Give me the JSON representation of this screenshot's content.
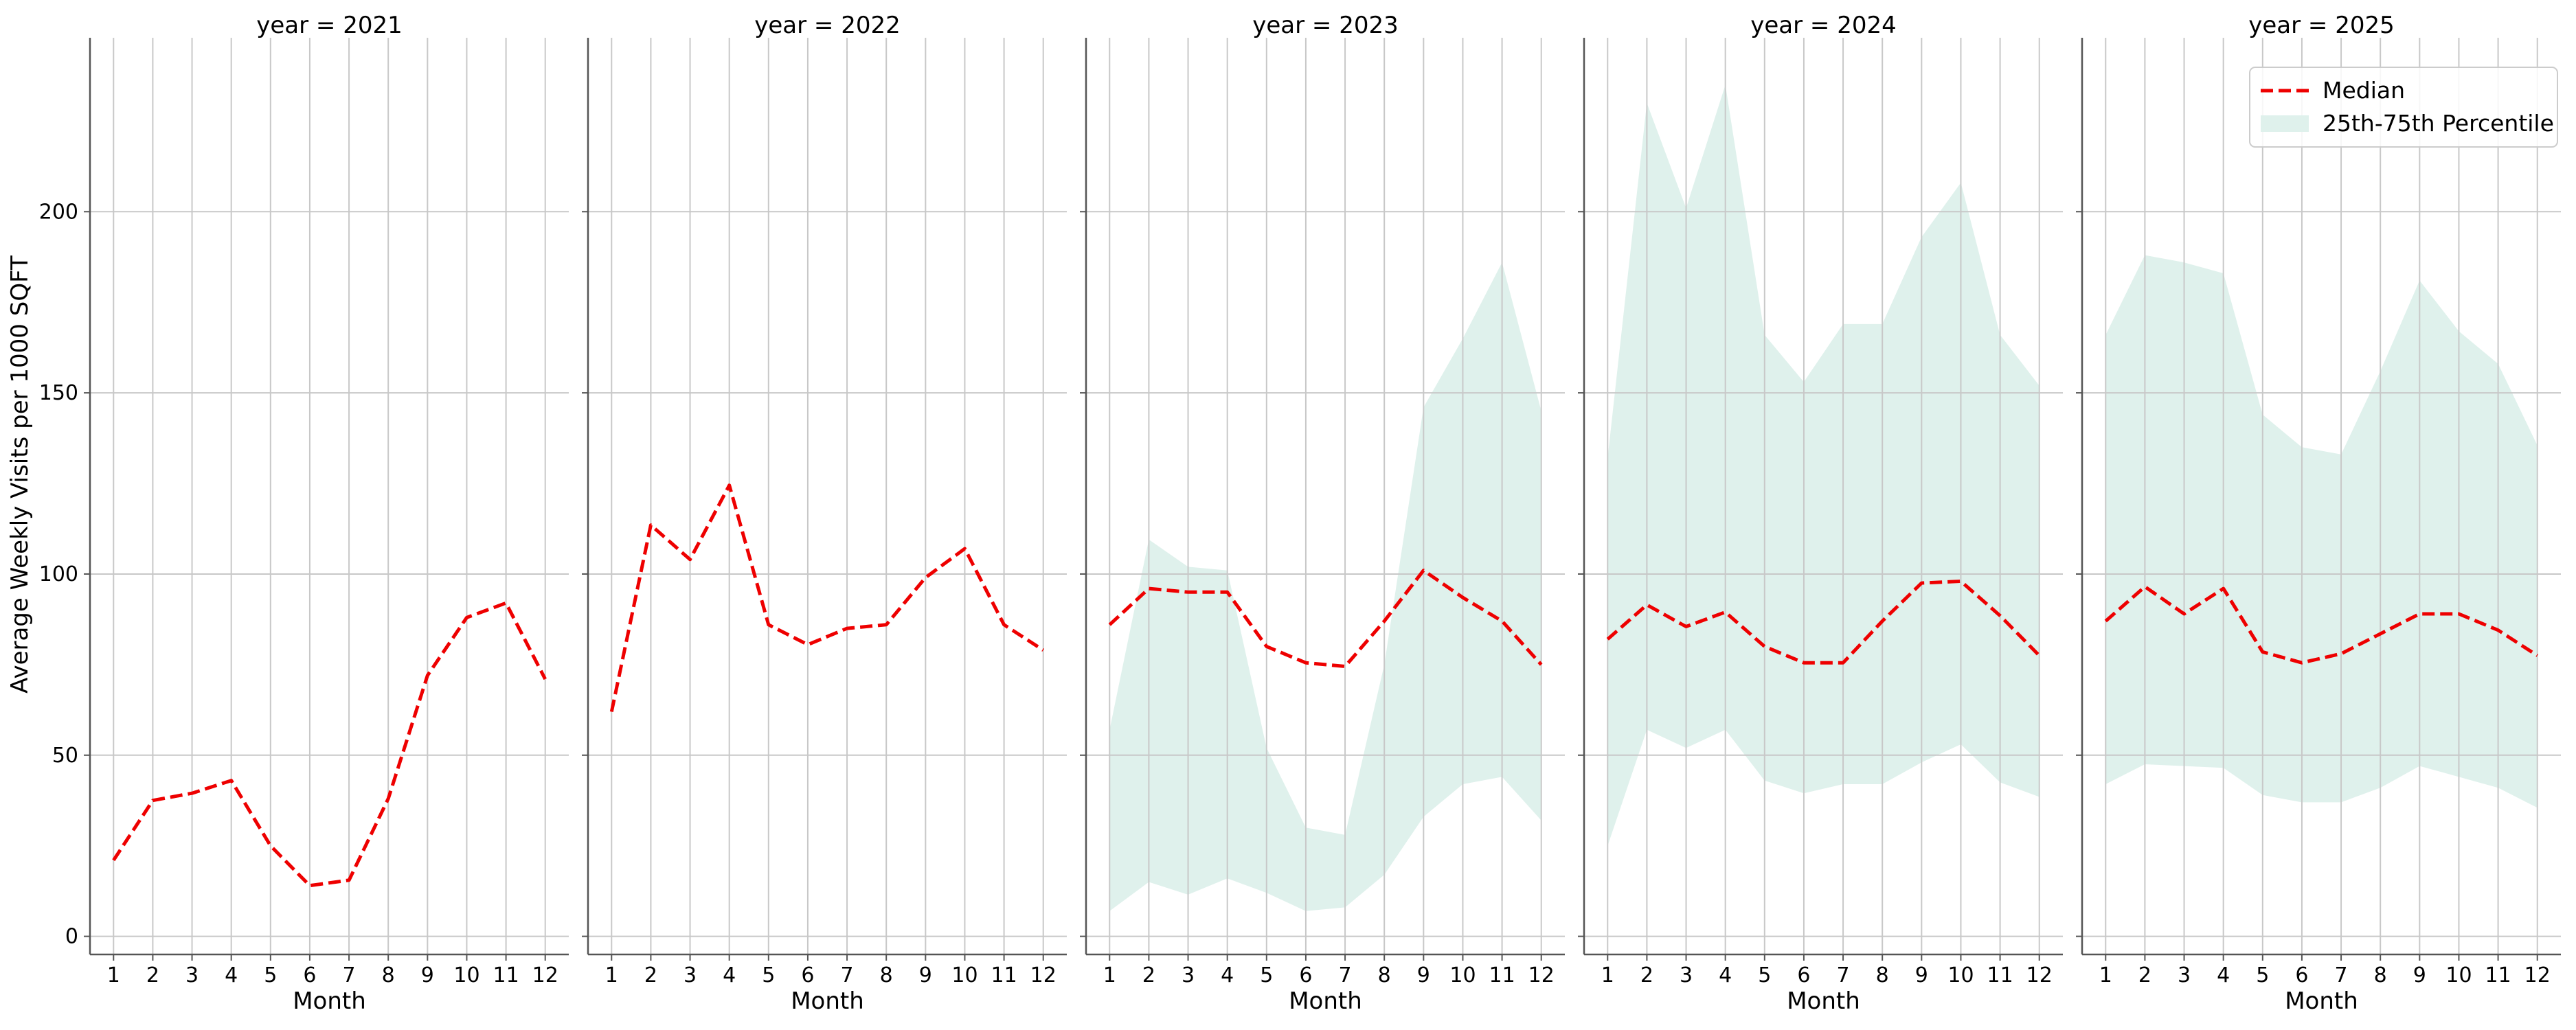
{
  "chart_data": {
    "type": "line",
    "ylabel": "Average Weekly Visits per 1000 SQFT",
    "xlabel": "Month",
    "x": [
      1,
      2,
      3,
      4,
      5,
      6,
      7,
      8,
      9,
      10,
      11,
      12
    ],
    "ylim": [
      -5,
      248
    ],
    "yticks": [
      0,
      50,
      100,
      150,
      200
    ],
    "grid": true,
    "legend": {
      "placement": "top-right",
      "entries": [
        "Median",
        "25th-75th Percentile"
      ]
    },
    "colors": {
      "median": "#ee0000",
      "band": "#dff1ec",
      "grid": "#c8c8c8",
      "axis": "#555555"
    },
    "panels": [
      {
        "title": "year = 2021",
        "median": [
          21,
          37.5,
          39.5,
          43,
          25,
          14,
          15.5,
          38,
          72,
          88,
          92,
          71
        ],
        "p25": null,
        "p75": null
      },
      {
        "title": "year = 2022",
        "median": [
          62,
          113.5,
          104,
          124.5,
          86,
          80.5,
          85,
          86,
          99,
          107,
          86,
          79
        ],
        "p25": null,
        "p75": null
      },
      {
        "title": "year = 2023",
        "median": [
          86,
          96,
          95,
          95,
          80,
          75.5,
          74.5,
          87,
          101,
          93.5,
          87,
          75
        ],
        "p25": [
          7,
          15,
          11.5,
          16,
          12,
          7,
          8,
          17,
          33,
          42,
          44,
          32
        ],
        "p75": [
          57,
          109.5,
          102,
          101,
          52,
          30,
          28,
          75,
          146,
          165,
          186,
          145
        ]
      },
      {
        "title": "year = 2024",
        "median": [
          82,
          91.5,
          85.5,
          89.5,
          80,
          75.5,
          75.5,
          87,
          97.5,
          98,
          88.5,
          77.5
        ],
        "p25": [
          25,
          57,
          52,
          57,
          43,
          39.5,
          42,
          42,
          48,
          53,
          42.5,
          38.5
        ],
        "p75": [
          132,
          230,
          201,
          235,
          166,
          153,
          169,
          169,
          193,
          208,
          166,
          152
        ]
      },
      {
        "title": "year = 2025",
        "median": [
          87,
          96.5,
          89,
          96,
          78.5,
          75.5,
          78,
          83.5,
          89,
          89,
          84.5,
          77.5
        ],
        "p25": [
          42,
          47.5,
          47,
          46.5,
          39,
          37,
          37,
          41,
          47,
          44,
          41,
          35.5
        ],
        "p75": [
          166,
          188,
          186,
          183,
          144,
          135,
          133,
          156,
          181,
          167,
          158,
          135.5
        ]
      }
    ]
  }
}
